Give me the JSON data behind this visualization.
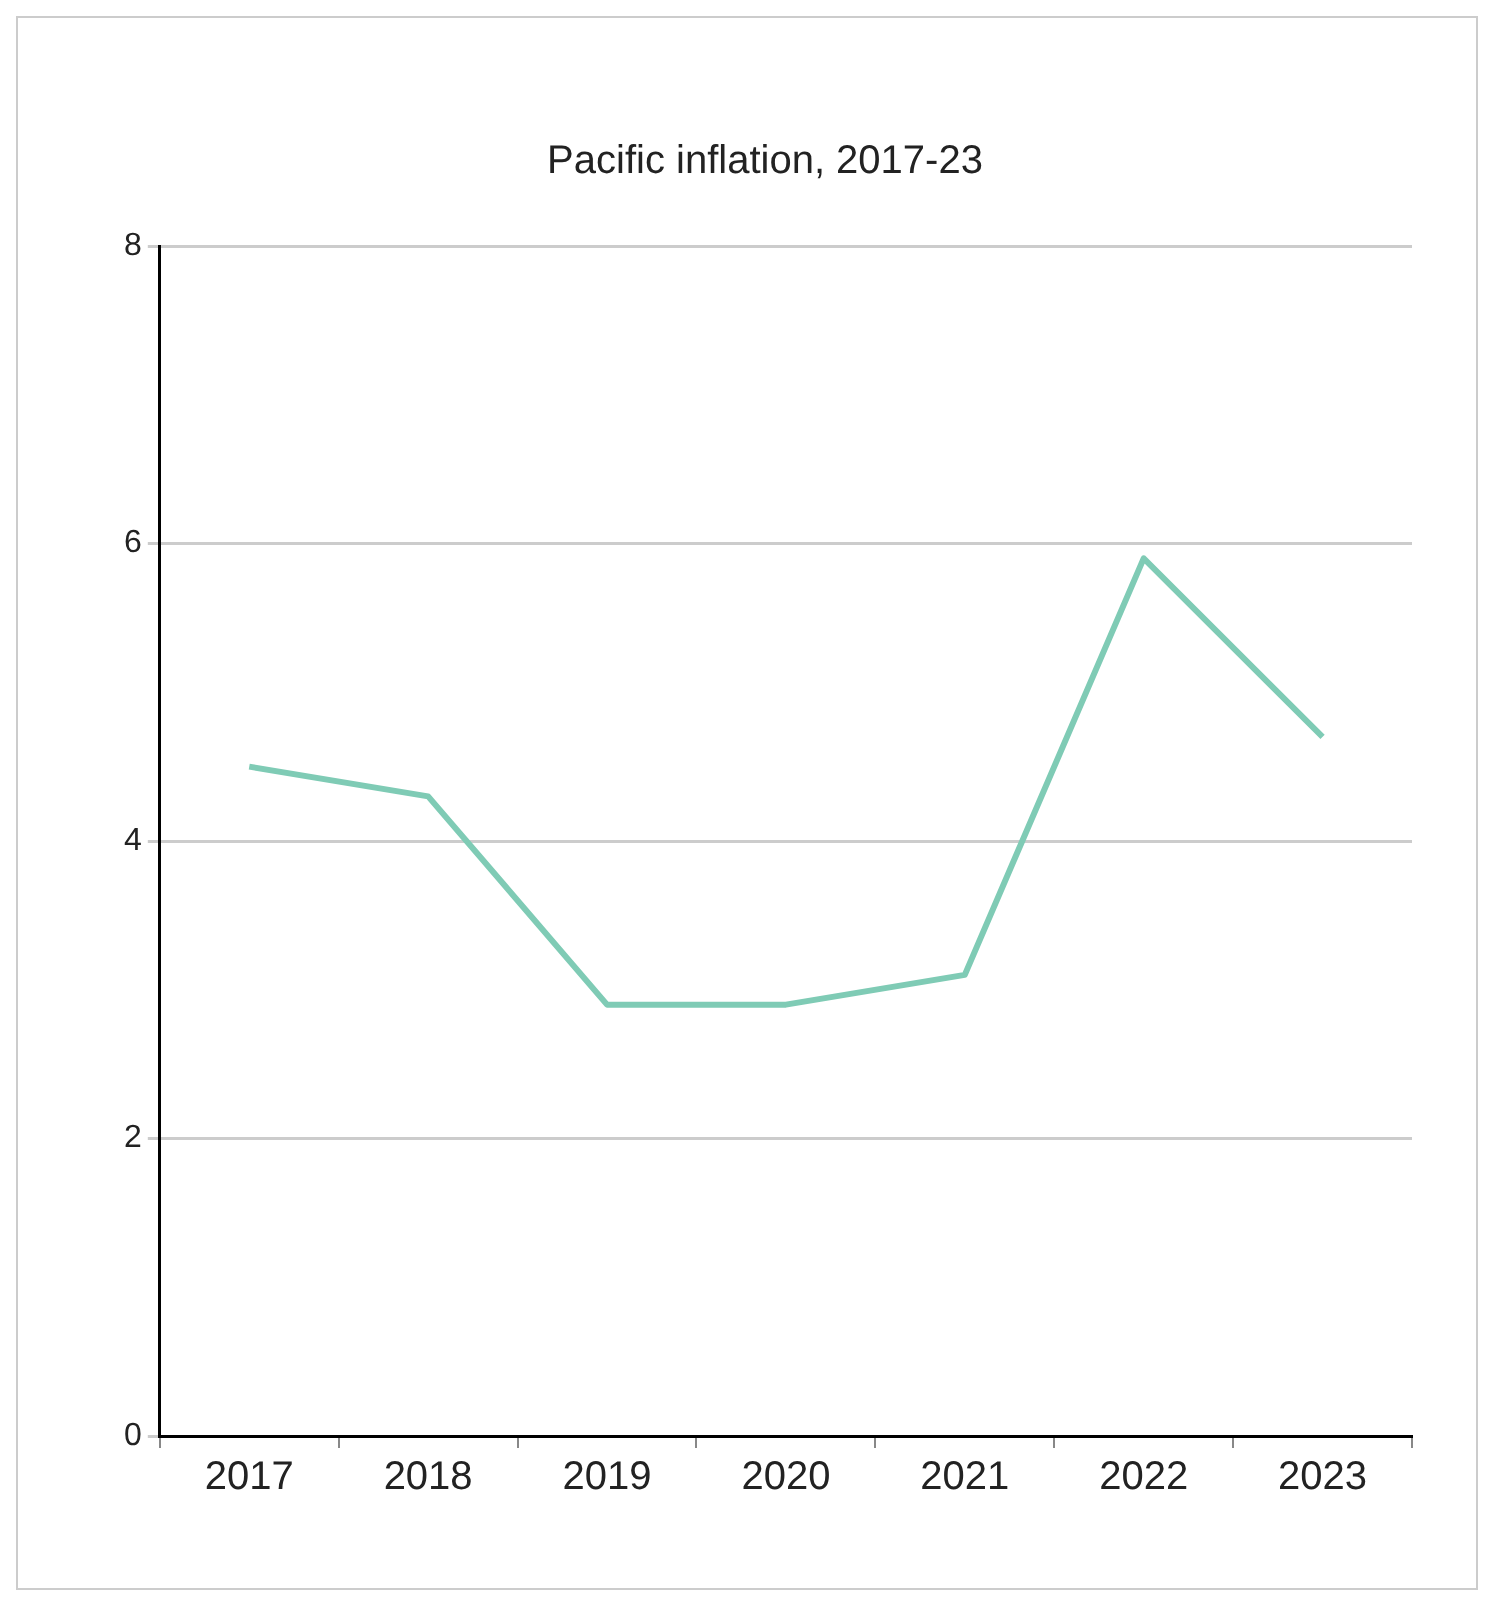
{
  "chart_data": {
    "type": "line",
    "title": "Pacific inflation, 2017-23",
    "categories": [
      "2017",
      "2018",
      "2019",
      "2020",
      "2021",
      "2022",
      "2023"
    ],
    "series": [
      {
        "color": "#7fcbb5",
        "values": [
          4.5,
          4.3,
          2.9,
          2.9,
          3.1,
          5.9,
          4.7
        ]
      }
    ],
    "ylim": [
      0,
      8
    ],
    "yticks": [
      0,
      2,
      4,
      6,
      8
    ],
    "grid": "y",
    "legend": false,
    "marker": "none",
    "line_style": "solid"
  }
}
